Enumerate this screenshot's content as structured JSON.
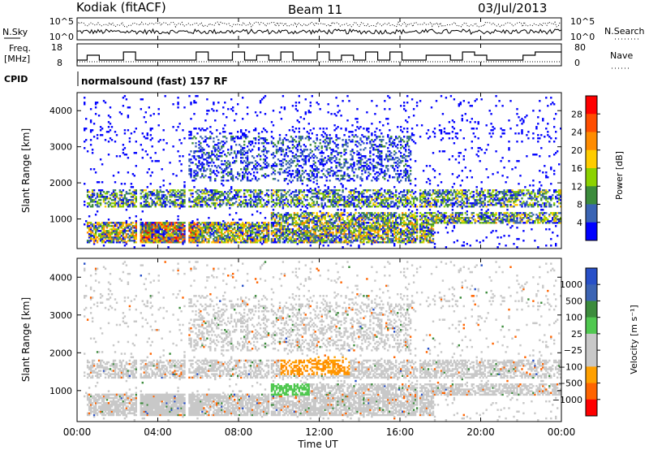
{
  "header": {
    "station": "Kodiak  (fitACF)",
    "beam": "Beam 11",
    "date": "03/Jul/2013"
  },
  "top_panels": {
    "nsky_label": "N.Sky",
    "nsky_ticks": [
      "10^5",
      "10^0"
    ],
    "nsearch_label": "N.Search",
    "nsearch_ticks": [
      "10^5",
      "10^0"
    ],
    "freq_label_1": "Freq.",
    "freq_label_2": "[MHz]",
    "freq_ticks": [
      "18",
      "8"
    ],
    "nave_label": "Nave",
    "nave_ticks": [
      "80",
      "0"
    ],
    "cpid_label": "CPID",
    "cpid_value": "normalsound (fast) 157 RF"
  },
  "chart_data": [
    {
      "type": "heatmap",
      "title": "",
      "xlabel": "",
      "ylabel": "Slant Range [km]",
      "x_range_hours": [
        0,
        24
      ],
      "y_range_km": [
        180,
        4500
      ],
      "y_ticks": [
        "4000",
        "3000",
        "2000",
        "1000"
      ],
      "colorbar_label": "Power [dB]",
      "colorbar_ticks": [
        "28",
        "24",
        "20",
        "16",
        "12",
        "8",
        "4"
      ],
      "colorbar_colors": [
        "#ff0000",
        "#ff4d00",
        "#ff8c00",
        "#ffcc00",
        "#8cd200",
        "#3c8c3c",
        "#3a64b4",
        "#0000ff"
      ],
      "echo_bands": [
        {
          "range_km": [
            1300,
            1800
          ],
          "from": 0.4,
          "to": 24.0,
          "level": "medium"
        },
        {
          "range_km": [
            300,
            900
          ],
          "from": 0.4,
          "to": 17.6,
          "level": "strong"
        },
        {
          "range_km": [
            850,
            1100
          ],
          "from": 9.5,
          "to": 24.0,
          "level": "medium"
        },
        {
          "range_km": [
            2000,
            3300
          ],
          "from": 5.5,
          "to": 16.5,
          "level": "weak"
        }
      ]
    },
    {
      "type": "heatmap",
      "title": "",
      "xlabel": "Time UT",
      "ylabel": "Slant Range [km]",
      "x_range_hours": [
        0,
        24
      ],
      "y_range_km": [
        180,
        4500
      ],
      "y_ticks": [
        "4000",
        "3000",
        "2000",
        "1000"
      ],
      "x_ticks": [
        "00:00",
        "04:00",
        "08:00",
        "12:00",
        "16:00",
        "20:00",
        "00:00"
      ],
      "colorbar_label": "Velocity  [m s⁻¹]",
      "colorbar_ticks": [
        "1000",
        "500",
        "100",
        "25",
        "−25",
        "−100",
        "−500",
        "−1000"
      ],
      "colorbar_colors": [
        "#2850c8",
        "#3c64b4",
        "#3c8c3c",
        "#50c850",
        "#c8c8c8",
        "#c8c8c8",
        "#ffa000",
        "#ff6400",
        "#ff0000"
      ]
    }
  ]
}
